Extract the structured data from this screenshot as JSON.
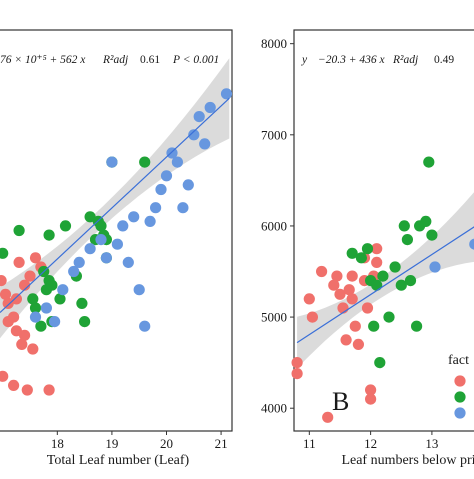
{
  "colors": {
    "f1": "#f0706b",
    "f2": "#1fa336",
    "f3": "#6797df",
    "fit_line": "#3a6fd8",
    "ci_band": "#cfcfcf"
  },
  "chart_data": [
    {
      "type": "scatter",
      "xlabel": "Total Leaf number (Leaf)",
      "ylabel": "",
      "equation": "76 × 10⁺⁵ + 562 x",
      "r2_label": "R²adj",
      "r2_value": "0.61",
      "p_label": "P < 0.001",
      "x_ticks": [
        "18",
        "19",
        "20",
        "21"
      ],
      "y_ticks": [],
      "xlim": [
        16.95,
        21.2
      ],
      "ylim": [
        3750,
        8150
      ],
      "grid": false,
      "fit": {
        "x": [
          16.95,
          21.15
        ],
        "y": [
          5050,
          7400
        ]
      },
      "series": [
        {
          "color_key": "f1",
          "x": [
            16.97,
            17.05,
            17.1,
            17.2,
            17.25,
            17.3,
            17.4,
            17.5,
            17.6,
            17.7,
            17.1,
            17.25,
            17.4,
            17.55,
            17.35,
            17.0,
            17.2,
            17.45,
            17.85
          ],
          "y": [
            5400,
            5250,
            5150,
            5000,
            5200,
            5600,
            5350,
            5450,
            5650,
            5550,
            4950,
            4850,
            4800,
            4650,
            4700,
            4350,
            4250,
            4200,
            4200
          ]
        },
        {
          "color_key": "f2",
          "x": [
            17.0,
            17.3,
            17.55,
            17.6,
            17.7,
            17.75,
            17.8,
            17.85,
            17.85,
            17.9,
            17.9,
            18.05,
            18.15,
            18.35,
            18.45,
            18.5,
            18.6,
            18.7,
            18.75,
            18.8,
            18.85,
            18.9,
            18.9,
            19.0,
            19.6
          ],
          "y": [
            5700,
            5950,
            5200,
            5100,
            4900,
            5500,
            5300,
            5400,
            5900,
            5350,
            4950,
            5200,
            6000,
            5450,
            5150,
            4950,
            6100,
            5850,
            6050,
            6000,
            5900,
            5850,
            5650,
            6700,
            6700
          ]
        },
        {
          "color_key": "f3",
          "x": [
            17.6,
            17.8,
            17.95,
            18.1,
            18.3,
            18.4,
            18.6,
            18.8,
            18.9,
            19.0,
            19.1,
            19.2,
            19.3,
            19.4,
            19.5,
            19.6,
            19.7,
            19.8,
            19.9,
            20.0,
            20.1,
            20.2,
            20.3,
            20.4,
            20.5,
            20.6,
            20.7,
            20.8,
            21.1
          ],
          "y": [
            5000,
            5100,
            4950,
            5300,
            5500,
            5600,
            5750,
            5850,
            5650,
            6700,
            5800,
            6000,
            5600,
            6100,
            5300,
            4900,
            6050,
            6200,
            6400,
            6550,
            6800,
            6700,
            6200,
            6450,
            7000,
            7200,
            6900,
            7300,
            7450
          ]
        }
      ]
    },
    {
      "type": "scatter",
      "xlabel": "Leaf numbers below prin",
      "ylabel": "",
      "equation": "−20.3 + 436 x",
      "y_symbol": "y",
      "r2_label": "R²adj",
      "r2_value": "0.49",
      "x_ticks": [
        "11",
        "12",
        "13"
      ],
      "y_ticks": [
        "4000",
        "5000",
        "6000",
        "7000",
        "8000"
      ],
      "xlim": [
        10.75,
        13.85
      ],
      "ylim": [
        3750,
        8150
      ],
      "grid": false,
      "panel_letter": "B",
      "legend_title": "fact",
      "fit": {
        "x": [
          10.8,
          13.85
        ],
        "y": [
          4720,
          6060
        ]
      },
      "series": [
        {
          "color_key": "f1",
          "x": [
            10.8,
            10.8,
            11.0,
            11.05,
            11.2,
            11.3,
            11.4,
            11.45,
            11.5,
            11.55,
            11.6,
            11.65,
            11.7,
            11.7,
            11.75,
            11.8,
            11.9,
            11.9,
            11.95,
            12.0,
            12.0,
            12.05,
            12.1,
            12.1
          ],
          "y": [
            4500,
            4380,
            5200,
            5000,
            5500,
            3900,
            5350,
            5450,
            5250,
            5100,
            4750,
            5300,
            5450,
            5200,
            4900,
            4700,
            5650,
            5400,
            5100,
            4200,
            4100,
            5450,
            5600,
            5750
          ]
        },
        {
          "color_key": "f2",
          "x": [
            11.7,
            11.85,
            11.95,
            12.0,
            12.05,
            12.1,
            12.15,
            12.2,
            12.3,
            12.4,
            12.5,
            12.55,
            12.6,
            12.65,
            12.75,
            12.8,
            12.9,
            12.95,
            13.0
          ],
          "y": [
            5700,
            5650,
            5750,
            5400,
            4900,
            5350,
            4500,
            5450,
            5000,
            5550,
            5350,
            6000,
            5850,
            5400,
            4900,
            6000,
            6050,
            6700,
            5900
          ]
        },
        {
          "color_key": "f3",
          "x": [
            13.05,
            13.7
          ],
          "y": [
            5550,
            5800
          ]
        }
      ],
      "legend": {
        "color_keys": [
          "f1",
          "f2",
          "f3"
        ]
      }
    }
  ]
}
